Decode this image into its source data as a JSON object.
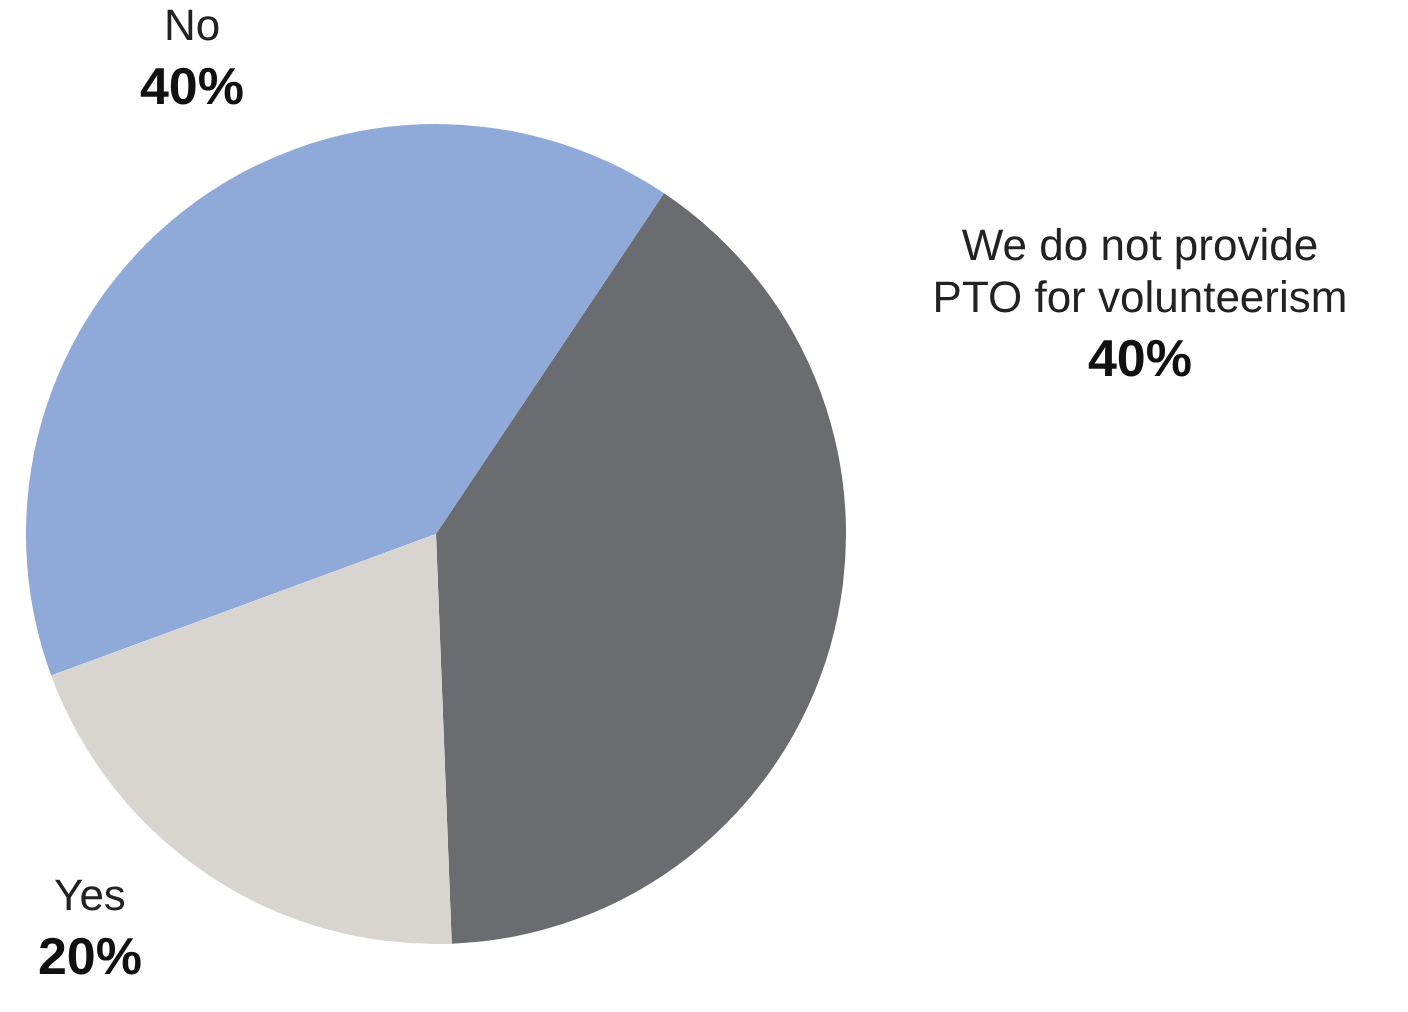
{
  "chart_data": {
    "type": "pie",
    "categories": [
      "No",
      "We do not provide PTO for volunteerism",
      "Yes"
    ],
    "values": [
      40,
      40,
      20
    ],
    "colors": [
      "#8faad8",
      "#6b6c70",
      "#d8d4cf"
    ],
    "value_labels": [
      "40%",
      "40%",
      "20%"
    ]
  }
}
